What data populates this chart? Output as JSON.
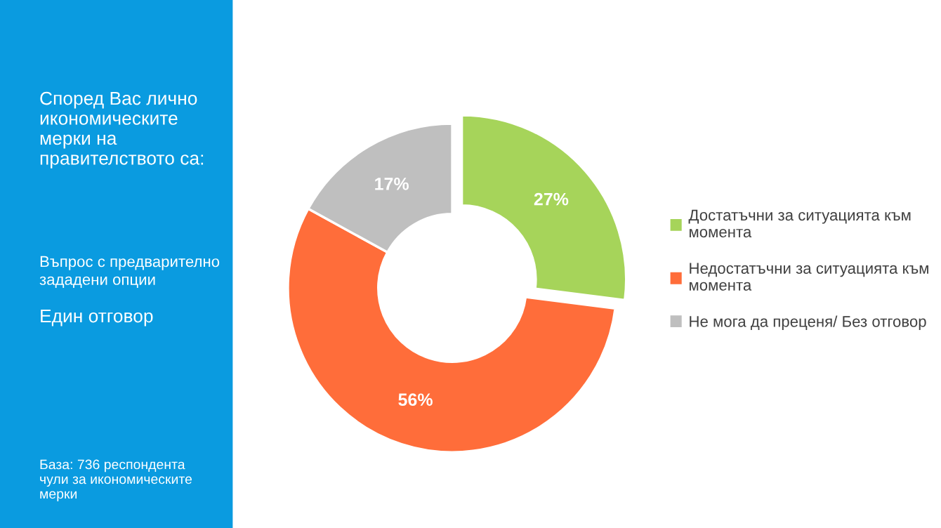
{
  "chart_data": {
    "type": "donut",
    "title": "Според Вас лично\nикономическите\nмерки на\nправителството са:",
    "subtitle": "Въпрос с предварително\nзададени опции",
    "annotations": [
      "Един отговор",
      "База: 736 респондента\nчули за икономическите\nмерки"
    ],
    "categories": [
      "Достатъчни за ситуацията към\nмомента",
      "Недостатъчни за ситуацията към\nмомента",
      "Не мога да преценя/ Без отговор"
    ],
    "values": [
      27,
      56,
      17
    ],
    "colors": [
      "#a6d45a",
      "#ff6d3a",
      "#bfbfbf"
    ],
    "value_labels": [
      "27%",
      "56%",
      "17%"
    ],
    "legend": "right"
  }
}
